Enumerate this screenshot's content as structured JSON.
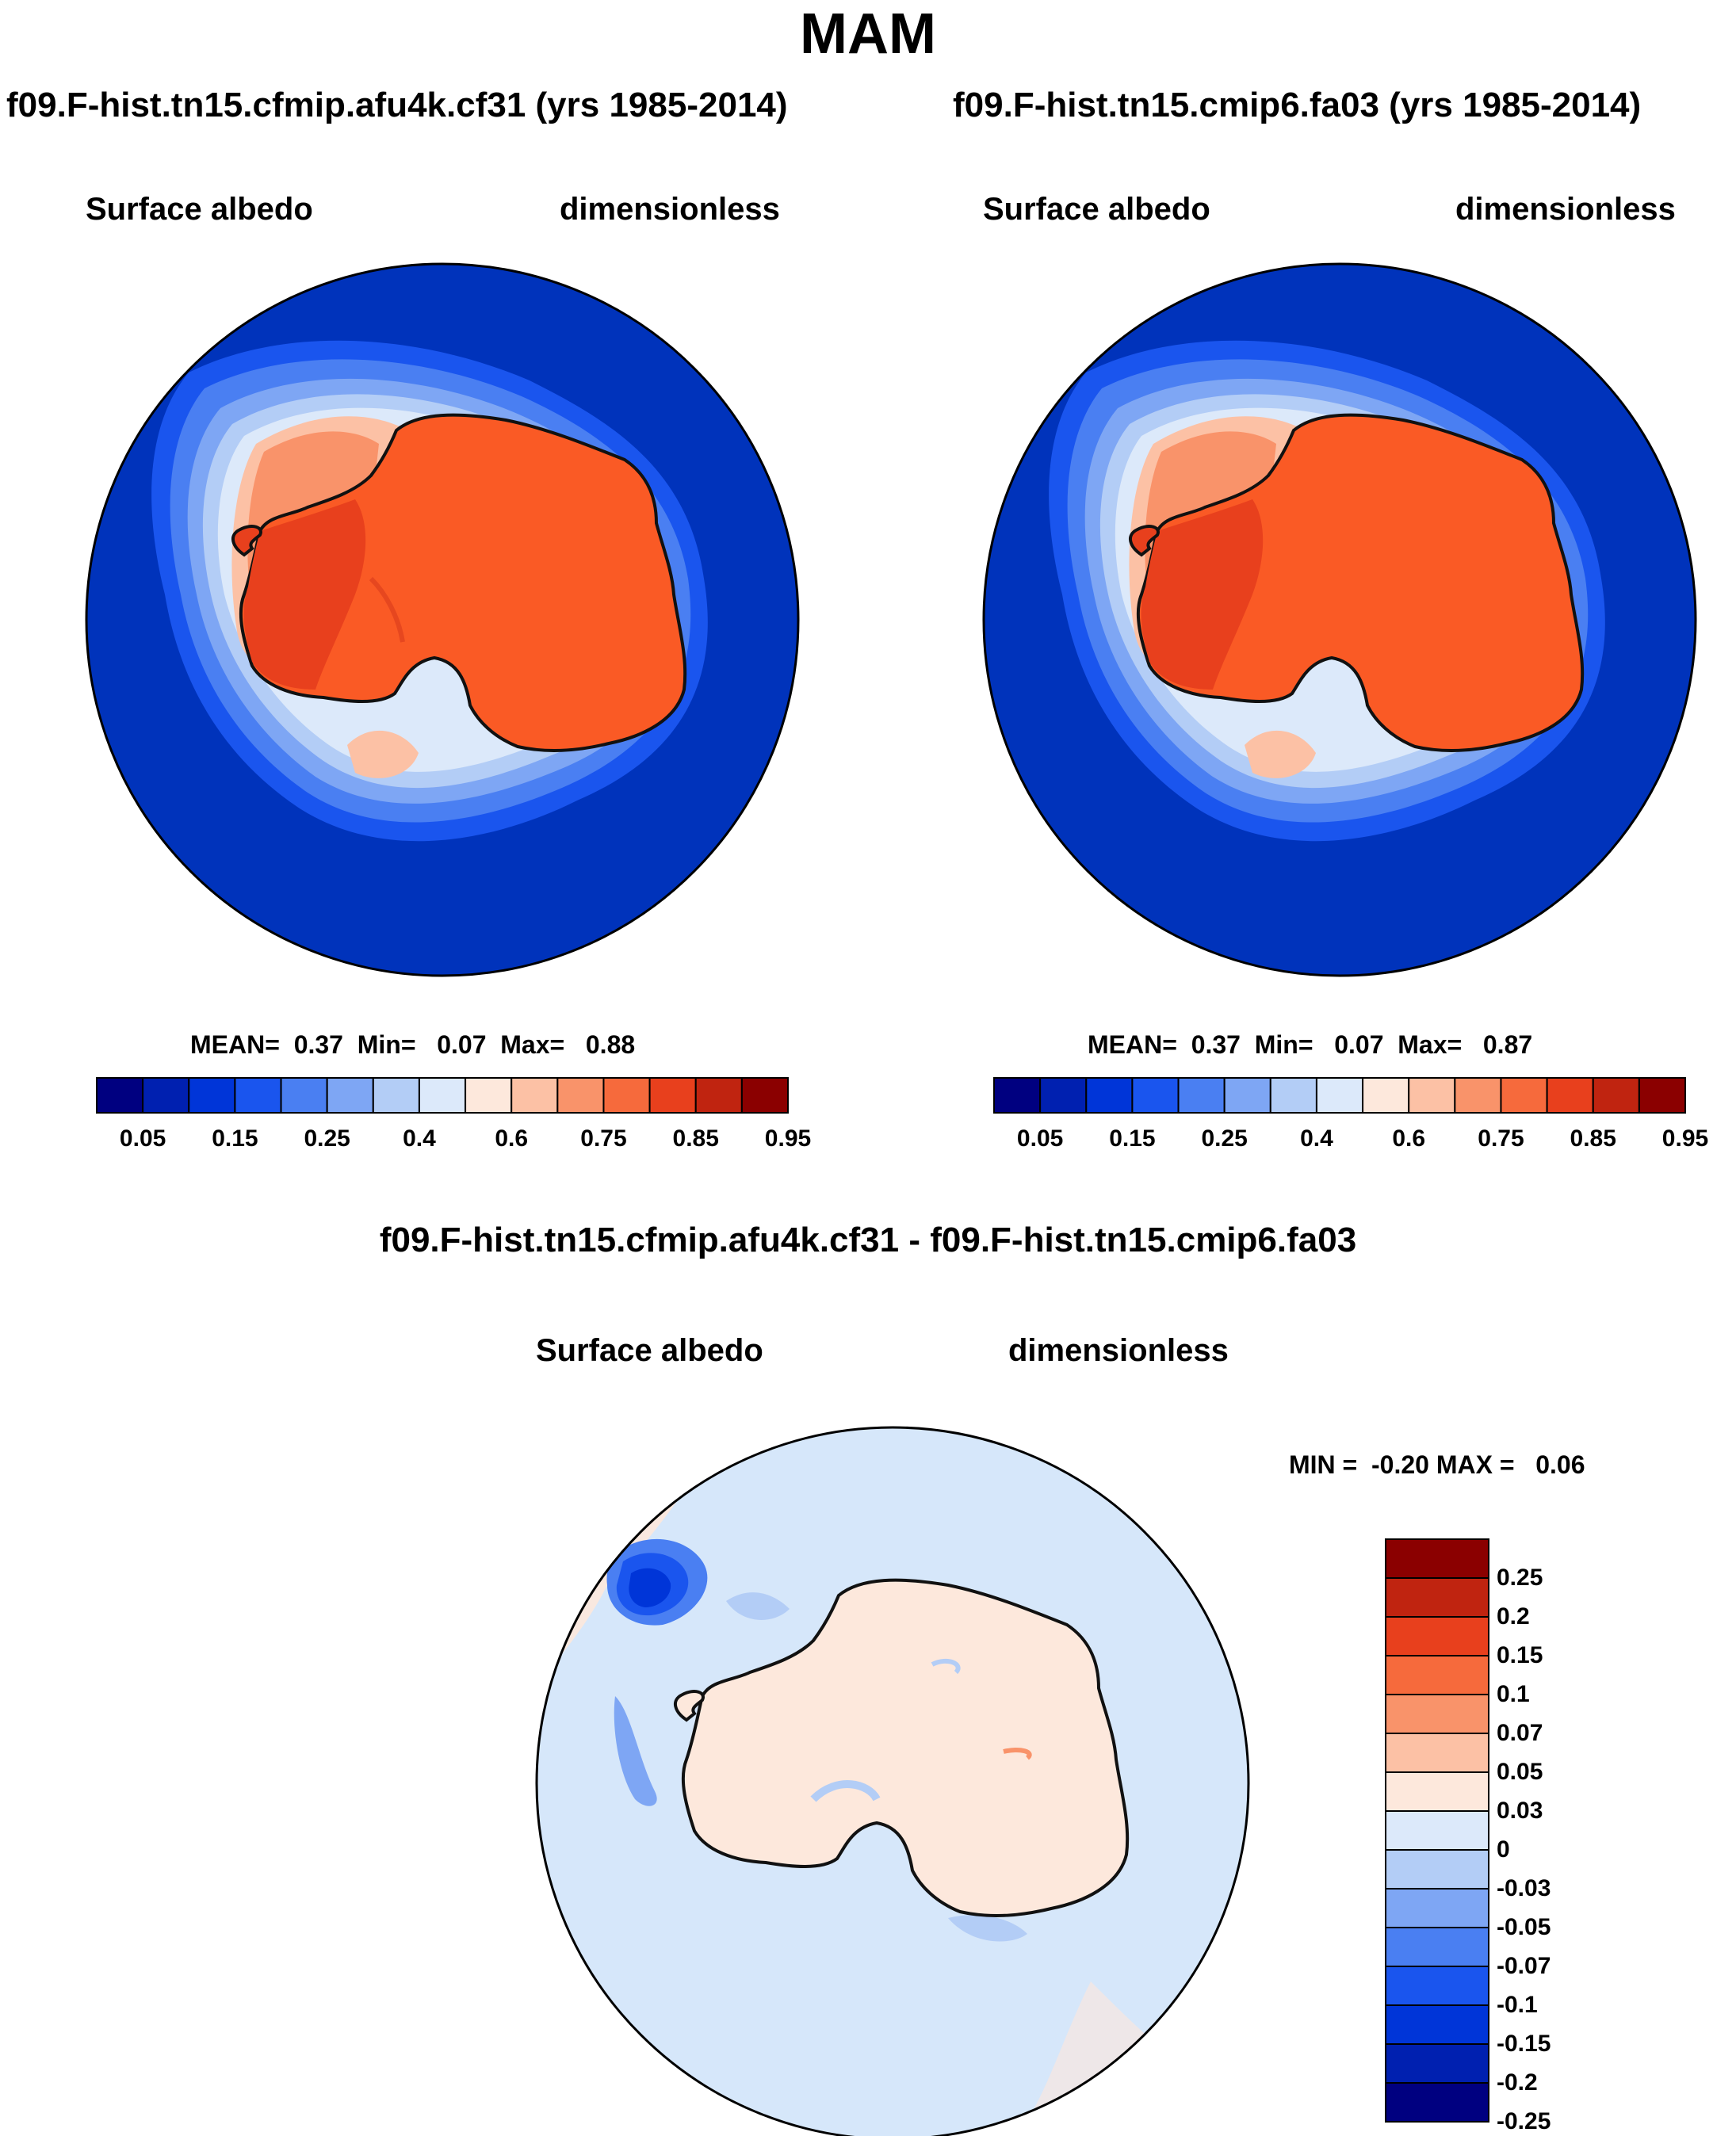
{
  "title": "MAM",
  "panels": [
    {
      "case": "f09.F-hist.tn15.cfmip.afu4k.cf31 (yrs 1985-2014)",
      "variable": "Surface albedo",
      "units": "dimensionless",
      "stats": {
        "mean_label": "MEAN=",
        "mean": "0.37",
        "min_label": "Min=",
        "min": "0.07",
        "max_label": "Max=",
        "max": "0.88"
      }
    },
    {
      "case": "f09.F-hist.tn15.cmip6.fa03 (yrs 1985-2014)",
      "variable": "Surface albedo",
      "units": "dimensionless",
      "stats": {
        "mean_label": "MEAN=",
        "mean": "0.37",
        "min_label": "Min=",
        "min": "0.07",
        "max_label": "Max=",
        "max": "0.87"
      }
    }
  ],
  "difference": {
    "case": "f09.F-hist.tn15.cfmip.afu4k.cf31 - f09.F-hist.tn15.cmip6.fa03",
    "variable": "Surface albedo",
    "units": "dimensionless",
    "stats": "MIN =  -0.20 MAX =   0.06"
  },
  "chart_data": [
    {
      "type": "heatmap",
      "projection": "south-polar stereographic",
      "field": "Surface albedo",
      "colorbar": {
        "orientation": "horizontal",
        "colors": [
          "#000080",
          "#0020b0",
          "#0035d8",
          "#1a55ee",
          "#4a7ff2",
          "#7ea6f4",
          "#b3cdf6",
          "#dce9fa",
          "#fde8dc",
          "#fcc1a5",
          "#f9936a",
          "#f66a3c",
          "#e8401d",
          "#c02410",
          "#8b0000"
        ],
        "tick_labels": [
          "0.05",
          "0.15",
          "0.25",
          "0.4",
          "0.6",
          "0.75",
          "0.85",
          "0.95"
        ]
      }
    },
    {
      "type": "heatmap",
      "projection": "south-polar stereographic",
      "field": "Surface albedo",
      "colorbar": {
        "orientation": "horizontal",
        "colors": [
          "#000080",
          "#0020b0",
          "#0035d8",
          "#1a55ee",
          "#4a7ff2",
          "#7ea6f4",
          "#b3cdf6",
          "#dce9fa",
          "#fde8dc",
          "#fcc1a5",
          "#f9936a",
          "#f66a3c",
          "#e8401d",
          "#c02410",
          "#8b0000"
        ],
        "tick_labels": [
          "0.05",
          "0.15",
          "0.25",
          "0.4",
          "0.6",
          "0.75",
          "0.85",
          "0.95"
        ]
      }
    },
    {
      "type": "heatmap",
      "projection": "south-polar stereographic",
      "field": "Surface albedo difference",
      "colorbar": {
        "orientation": "vertical",
        "colors": [
          "#000080",
          "#0020b0",
          "#0035d8",
          "#1a55ee",
          "#4a7ff2",
          "#7ea6f4",
          "#b3cdf6",
          "#dce9fa",
          "#fde8dc",
          "#fcc1a5",
          "#f9936a",
          "#f66a3c",
          "#e8401d",
          "#c02410",
          "#8b0000"
        ],
        "tick_labels": [
          "0.25",
          "0.2",
          "0.15",
          "0.1",
          "0.07",
          "0.05",
          "0.03",
          "0",
          "-0.03",
          "-0.05",
          "-0.07",
          "-0.1",
          "-0.15",
          "-0.2",
          "-0.25"
        ]
      }
    }
  ],
  "colors": {
    "ocean_low": "#0033bb",
    "ice_high": "#fa5a25",
    "diff_ocean": "#d6e7fa",
    "diff_land": "#fde8dc"
  }
}
